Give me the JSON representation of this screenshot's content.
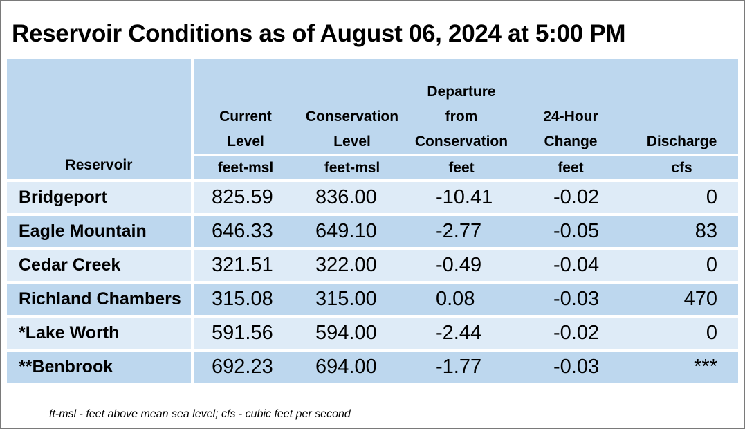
{
  "title": "Reservoir Conditions as of August 06, 2024 at 5:00 PM",
  "columns": [
    {
      "lines": [
        "",
        "",
        "",
        ""
      ],
      "header": "Reservoir",
      "unit": ""
    },
    {
      "lines": [
        "Current",
        "Level"
      ],
      "unit": "feet-msl"
    },
    {
      "lines": [
        "Conservation",
        "Level"
      ],
      "unit": "feet-msl"
    },
    {
      "lines": [
        "Departure",
        "from",
        "Conservation"
      ],
      "unit": "feet"
    },
    {
      "lines": [
        "24-Hour",
        "Change"
      ],
      "unit": "feet"
    },
    {
      "lines": [
        "Discharge"
      ],
      "unit": "cfs"
    }
  ],
  "rows": [
    {
      "name": "Bridgeport",
      "current": "825.59",
      "conservation": "836.00",
      "departure": "-10.41",
      "change": "-0.02",
      "discharge": "0"
    },
    {
      "name": "Eagle Mountain",
      "current": "646.33",
      "conservation": "649.10",
      "departure": "-2.77",
      "change": "-0.05",
      "discharge": "83"
    },
    {
      "name": "Cedar Creek",
      "current": "321.51",
      "conservation": "322.00",
      "departure": "-0.49",
      "change": "-0.04",
      "discharge": "0"
    },
    {
      "name": "Richland Chambers",
      "current": "315.08",
      "conservation": "315.00",
      "departure": "0.08",
      "change": "-0.03",
      "discharge": "470"
    },
    {
      "name": "*Lake Worth",
      "current": "591.56",
      "conservation": "594.00",
      "departure": "-2.44",
      "change": "-0.02",
      "discharge": "0"
    },
    {
      "name": "**Benbrook",
      "current": "692.23",
      "conservation": "694.00",
      "departure": "-1.77",
      "change": "-0.03",
      "discharge": "***"
    }
  ],
  "footnote": "ft-msl - feet above mean sea level; cfs - cubic feet per second",
  "colors": {
    "header_bg": "#bdd7ee",
    "row_light": "#deebf7",
    "row_dark": "#bdd7ee"
  }
}
